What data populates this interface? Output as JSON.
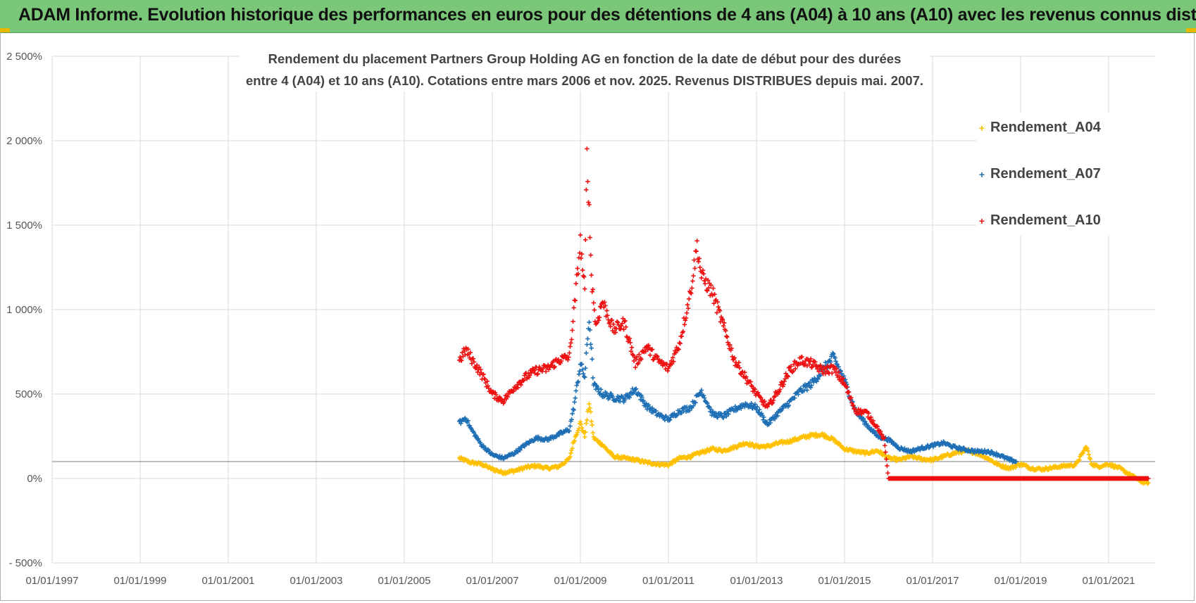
{
  "header": {
    "title": "ADAM Informe. Evolution historique des performances en euros pour des détentions de 4 ans (A04) à 10 ans (A10) avec les revenus connus distribués"
  },
  "colors": {
    "banner": "#7ac77a",
    "a04": "#ffc000",
    "a07": "#1f6fb5",
    "a10": "#ee1111",
    "grid": "#d9d9d9",
    "refline": "#a6a6a6"
  },
  "chart_data": {
    "type": "scatter",
    "title_line1": "Rendement du placement Partners Group Holding AG en fonction de la date de début pour des durées",
    "title_line2": "entre 4 (A04) et 10 ans (A10). Cotations entre mars 2006 et nov. 2025. Revenus DISTRIBUES depuis mai. 2007.",
    "xlabel": "",
    "ylabel": "",
    "x_range": [
      "01/01/1997",
      "01/12/2021"
    ],
    "ylim": [
      -500,
      2500
    ],
    "y_ticks": [
      -500,
      0,
      500,
      1000,
      1500,
      2000,
      2500
    ],
    "y_tick_labels": [
      "- 500%",
      "0%",
      "500%",
      "1 000%",
      "1 500%",
      "2 000%",
      "2 500%"
    ],
    "x_tick_labels": [
      "01/01/1997",
      "01/01/1999",
      "01/01/2001",
      "01/01/2003",
      "01/01/2005",
      "01/01/2007",
      "01/01/2009",
      "01/01/2011",
      "01/01/2013",
      "01/01/2015",
      "01/01/2017",
      "01/01/2019",
      "01/01/2021"
    ],
    "reference_line": 100,
    "marker": "+",
    "legend_position": "top-right",
    "series": [
      {
        "name": "Rendement_A04",
        "color": "#ffc000",
        "points": [
          [
            2006.25,
            120
          ],
          [
            2006.5,
            95
          ],
          [
            2006.75,
            85
          ],
          [
            2007.0,
            55
          ],
          [
            2007.25,
            35
          ],
          [
            2007.5,
            45
          ],
          [
            2007.75,
            65
          ],
          [
            2008.0,
            75
          ],
          [
            2008.25,
            60
          ],
          [
            2008.5,
            70
          ],
          [
            2008.75,
            115
          ],
          [
            2008.85,
            220
          ],
          [
            2009.0,
            330
          ],
          [
            2009.1,
            250
          ],
          [
            2009.2,
            450
          ],
          [
            2009.3,
            240
          ],
          [
            2009.5,
            200
          ],
          [
            2009.75,
            130
          ],
          [
            2010.0,
            120
          ],
          [
            2010.25,
            110
          ],
          [
            2010.5,
            95
          ],
          [
            2010.75,
            85
          ],
          [
            2011.0,
            80
          ],
          [
            2011.25,
            120
          ],
          [
            2011.5,
            130
          ],
          [
            2011.75,
            155
          ],
          [
            2012.0,
            175
          ],
          [
            2012.25,
            165
          ],
          [
            2012.5,
            185
          ],
          [
            2012.75,
            210
          ],
          [
            2013.0,
            190
          ],
          [
            2013.25,
            190
          ],
          [
            2013.5,
            210
          ],
          [
            2013.75,
            220
          ],
          [
            2014.0,
            240
          ],
          [
            2014.25,
            255
          ],
          [
            2014.5,
            260
          ],
          [
            2014.75,
            230
          ],
          [
            2015.0,
            175
          ],
          [
            2015.25,
            160
          ],
          [
            2015.5,
            150
          ],
          [
            2015.75,
            165
          ],
          [
            2016.0,
            120
          ],
          [
            2016.25,
            110
          ],
          [
            2016.5,
            130
          ],
          [
            2016.75,
            115
          ],
          [
            2017.0,
            110
          ],
          [
            2017.25,
            130
          ],
          [
            2017.5,
            150
          ],
          [
            2017.75,
            165
          ],
          [
            2018.0,
            150
          ],
          [
            2018.25,
            120
          ],
          [
            2018.5,
            80
          ],
          [
            2018.75,
            60
          ],
          [
            2019.0,
            85
          ],
          [
            2019.25,
            60
          ],
          [
            2019.5,
            55
          ],
          [
            2019.75,
            65
          ],
          [
            2020.0,
            75
          ],
          [
            2020.25,
            80
          ],
          [
            2020.5,
            190
          ],
          [
            2020.6,
            90
          ],
          [
            2020.75,
            70
          ],
          [
            2021.0,
            85
          ],
          [
            2021.25,
            60
          ],
          [
            2021.5,
            20
          ],
          [
            2021.75,
            -20
          ],
          [
            2021.9,
            -25
          ]
        ]
      },
      {
        "name": "Rendement_A07",
        "color": "#1f6fb5",
        "points": [
          [
            2006.25,
            330
          ],
          [
            2006.4,
            360
          ],
          [
            2006.5,
            300
          ],
          [
            2006.75,
            200
          ],
          [
            2007.0,
            140
          ],
          [
            2007.25,
            120
          ],
          [
            2007.5,
            150
          ],
          [
            2007.75,
            200
          ],
          [
            2008.0,
            240
          ],
          [
            2008.25,
            230
          ],
          [
            2008.5,
            260
          ],
          [
            2008.75,
            290
          ],
          [
            2008.85,
            420
          ],
          [
            2009.0,
            680
          ],
          [
            2009.1,
            600
          ],
          [
            2009.2,
            950
          ],
          [
            2009.3,
            550
          ],
          [
            2009.5,
            500
          ],
          [
            2009.75,
            480
          ],
          [
            2010.0,
            470
          ],
          [
            2010.25,
            530
          ],
          [
            2010.5,
            430
          ],
          [
            2010.75,
            380
          ],
          [
            2011.0,
            350
          ],
          [
            2011.25,
            400
          ],
          [
            2011.5,
            420
          ],
          [
            2011.75,
            520
          ],
          [
            2012.0,
            380
          ],
          [
            2012.25,
            370
          ],
          [
            2012.5,
            410
          ],
          [
            2012.75,
            440
          ],
          [
            2013.0,
            420
          ],
          [
            2013.25,
            320
          ],
          [
            2013.5,
            390
          ],
          [
            2013.75,
            450
          ],
          [
            2014.0,
            520
          ],
          [
            2014.25,
            560
          ],
          [
            2014.5,
            640
          ],
          [
            2014.75,
            720
          ],
          [
            2015.0,
            580
          ],
          [
            2015.25,
            400
          ],
          [
            2015.5,
            320
          ],
          [
            2015.75,
            250
          ],
          [
            2016.0,
            230
          ],
          [
            2016.25,
            180
          ],
          [
            2016.5,
            160
          ],
          [
            2016.75,
            180
          ],
          [
            2017.0,
            195
          ],
          [
            2017.25,
            210
          ],
          [
            2017.5,
            185
          ],
          [
            2017.75,
            170
          ],
          [
            2018.0,
            160
          ],
          [
            2018.25,
            160
          ],
          [
            2018.5,
            140
          ],
          [
            2018.75,
            110
          ],
          [
            2018.9,
            100
          ]
        ]
      },
      {
        "name": "Rendement_A10",
        "color": "#ee1111",
        "points": [
          [
            2006.25,
            700
          ],
          [
            2006.4,
            760
          ],
          [
            2006.5,
            720
          ],
          [
            2006.75,
            620
          ],
          [
            2007.0,
            500
          ],
          [
            2007.25,
            460
          ],
          [
            2007.5,
            540
          ],
          [
            2007.75,
            600
          ],
          [
            2008.0,
            640
          ],
          [
            2008.25,
            650
          ],
          [
            2008.5,
            700
          ],
          [
            2008.75,
            720
          ],
          [
            2008.85,
            980
          ],
          [
            2009.0,
            1400
          ],
          [
            2009.1,
            1100
          ],
          [
            2009.15,
            1950
          ],
          [
            2009.25,
            1200
          ],
          [
            2009.35,
            900
          ],
          [
            2009.5,
            1050
          ],
          [
            2009.75,
            880
          ],
          [
            2010.0,
            920
          ],
          [
            2010.25,
            680
          ],
          [
            2010.5,
            780
          ],
          [
            2010.75,
            700
          ],
          [
            2011.0,
            650
          ],
          [
            2011.25,
            800
          ],
          [
            2011.5,
            1100
          ],
          [
            2011.65,
            1380
          ],
          [
            2011.75,
            1200
          ],
          [
            2012.0,
            1100
          ],
          [
            2012.25,
            900
          ],
          [
            2012.5,
            700
          ],
          [
            2012.75,
            600
          ],
          [
            2013.0,
            500
          ],
          [
            2013.25,
            420
          ],
          [
            2013.5,
            520
          ],
          [
            2013.75,
            640
          ],
          [
            2014.0,
            700
          ],
          [
            2014.25,
            680
          ],
          [
            2014.5,
            640
          ],
          [
            2014.75,
            650
          ],
          [
            2015.0,
            560
          ],
          [
            2015.25,
            400
          ],
          [
            2015.5,
            390
          ],
          [
            2015.75,
            300
          ],
          [
            2015.9,
            230
          ],
          [
            2016.0,
            0
          ],
          [
            2018.0,
            0
          ],
          [
            2020.0,
            0
          ],
          [
            2021.9,
            0
          ]
        ]
      }
    ]
  }
}
